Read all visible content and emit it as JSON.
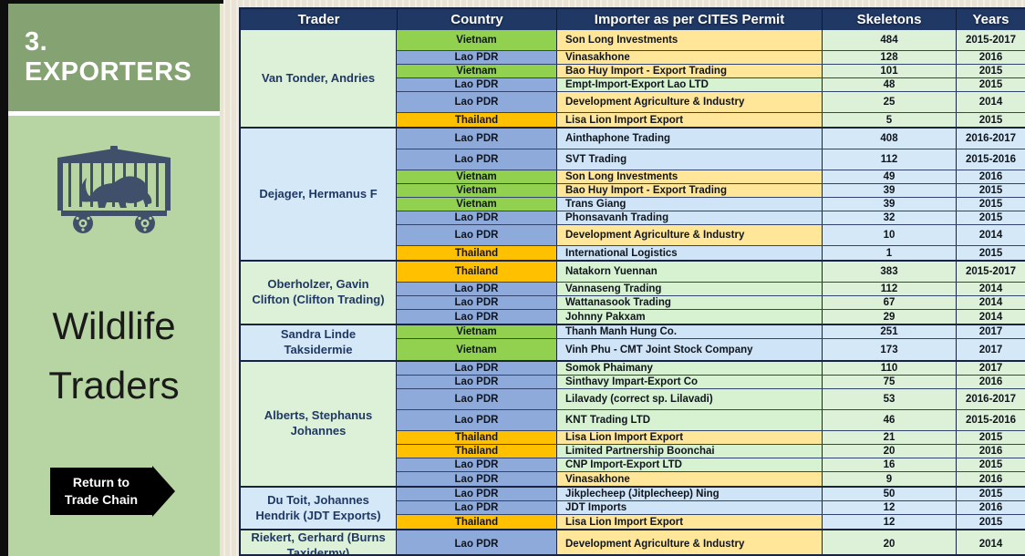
{
  "sidebar": {
    "section_label": "3. EXPORTERS",
    "title_line1": "Wildlife",
    "title_line2": "Traders",
    "return_button": {
      "line1": "Return to",
      "line2": "Trade Chain"
    },
    "icon": "lion-cage-icon"
  },
  "colors": {
    "header_bg": "#1F3864",
    "banner_green": "#85A372",
    "panel_green": "#B7D5A2",
    "vietnam_green": "#92D050",
    "lao_blue": "#8EAADB",
    "thailand_orange": "#FFC000",
    "cell_tan": "#FFE699",
    "cell_light_green": "#D6F2D0",
    "cell_light_blue": "#CFE5F7",
    "section_green": "#DDF0D8",
    "section_blue": "#D4E8F7"
  },
  "table": {
    "headers": [
      "Trader",
      "Country",
      "Importer as per CITES Permit",
      "Skeletons",
      "Years"
    ],
    "sections": [
      {
        "trader": "Van Tonder, Andries",
        "tone": "green",
        "rows": [
          {
            "country": "Vietnam",
            "country_color": "vietnam_green",
            "importer": "Son Long Investments",
            "importer_color": "cell_tan",
            "skeletons": "484",
            "years": "2015-2017",
            "size": "tall"
          },
          {
            "country": "Lao PDR",
            "country_color": "lao_blue",
            "importer": "Vinasakhone",
            "importer_color": "cell_tan",
            "skeletons": "128",
            "years": "2016",
            "size": "normal"
          },
          {
            "country": "Vietnam",
            "country_color": "vietnam_green",
            "importer": "Bao Huy Import - Export Trading",
            "importer_color": "cell_tan",
            "skeletons": "101",
            "years": "2015",
            "size": "normal"
          },
          {
            "country": "Lao PDR",
            "country_color": "lao_blue",
            "importer": "Empt-Import-Export Lao LTD",
            "importer_color": "cell_light_green",
            "skeletons": "48",
            "years": "2015",
            "size": "normal"
          },
          {
            "country": "Lao PDR",
            "country_color": "lao_blue",
            "importer": "Development Agriculture & Industry",
            "importer_color": "cell_tan",
            "skeletons": "25",
            "years": "2014",
            "size": "tall"
          },
          {
            "country": "Thailand",
            "country_color": "thailand_orange",
            "importer": "Lisa Lion Import Export",
            "importer_color": "cell_tan",
            "skeletons": "5",
            "years": "2015",
            "size": "normal"
          }
        ]
      },
      {
        "trader": "Dejager, Hermanus F",
        "tone": "blue",
        "rows": [
          {
            "country": "Lao PDR",
            "country_color": "lao_blue",
            "importer": "Ainthaphone Trading",
            "importer_color": "cell_light_blue",
            "skeletons": "408",
            "years": "2016-2017",
            "size": "tall"
          },
          {
            "country": "Lao PDR",
            "country_color": "lao_blue",
            "importer": "SVT Trading",
            "importer_color": "cell_light_blue",
            "skeletons": "112",
            "years": "2015-2016",
            "size": "tall"
          },
          {
            "country": "Vietnam",
            "country_color": "vietnam_green",
            "importer": "Son Long Investments",
            "importer_color": "cell_tan",
            "skeletons": "49",
            "years": "2016",
            "size": "normal"
          },
          {
            "country": "Vietnam",
            "country_color": "vietnam_green",
            "importer": "Bao Huy Import - Export Trading",
            "importer_color": "cell_tan",
            "skeletons": "39",
            "years": "2015",
            "size": "normal"
          },
          {
            "country": "Vietnam",
            "country_color": "vietnam_green",
            "importer": "Trans Giang",
            "importer_color": "cell_light_blue",
            "skeletons": "39",
            "years": "2015",
            "size": "normal"
          },
          {
            "country": "Lao PDR",
            "country_color": "lao_blue",
            "importer": "Phonsavanh Trading",
            "importer_color": "cell_light_blue",
            "skeletons": "32",
            "years": "2015",
            "size": "normal"
          },
          {
            "country": "Lao PDR",
            "country_color": "lao_blue",
            "importer": "Development Agriculture & Industry",
            "importer_color": "cell_tan",
            "skeletons": "10",
            "years": "2014",
            "size": "tall"
          },
          {
            "country": "Thailand",
            "country_color": "thailand_orange",
            "importer": "International Logistics",
            "importer_color": "cell_light_blue",
            "skeletons": "1",
            "years": "2015",
            "size": "normal"
          }
        ]
      },
      {
        "trader": "Oberholzer, Gavin Clifton (Clifton Trading)",
        "tone": "green",
        "rows": [
          {
            "country": "Thailand",
            "country_color": "thailand_orange",
            "importer": "Natakorn Yuennan",
            "importer_color": "cell_light_green",
            "skeletons": "383",
            "years": "2015-2017",
            "size": "tall"
          },
          {
            "country": "Lao PDR",
            "country_color": "lao_blue",
            "importer": "Vannaseng Trading",
            "importer_color": "cell_light_green",
            "skeletons": "112",
            "years": "2014",
            "size": "normal"
          },
          {
            "country": "Lao PDR",
            "country_color": "lao_blue",
            "importer": "Wattanasook Trading",
            "importer_color": "cell_light_green",
            "skeletons": "67",
            "years": "2014",
            "size": "normal"
          },
          {
            "country": "Lao PDR",
            "country_color": "lao_blue",
            "importer": "Johnny Pakxam",
            "importer_color": "cell_light_green",
            "skeletons": "29",
            "years": "2014",
            "size": "normal"
          }
        ]
      },
      {
        "trader": "Sandra Linde Taksidermie",
        "tone": "blue",
        "rows": [
          {
            "country": "Vietnam",
            "country_color": "vietnam_green",
            "importer": "Thanh Manh Hung Co.",
            "importer_color": "cell_light_blue",
            "skeletons": "251",
            "years": "2017",
            "size": "normal"
          },
          {
            "country": "Vietnam",
            "country_color": "vietnam_green",
            "importer": "Vinh Phu - CMT Joint Stock Company",
            "importer_color": "cell_light_blue",
            "skeletons": "173",
            "years": "2017",
            "size": "tall"
          }
        ]
      },
      {
        "trader": "Alberts, Stephanus Johannes",
        "tone": "green",
        "rows": [
          {
            "country": "Lao PDR",
            "country_color": "lao_blue",
            "importer": "Somok Phaimany",
            "importer_color": "cell_light_green",
            "skeletons": "110",
            "years": "2017",
            "size": "normal"
          },
          {
            "country": "Lao PDR",
            "country_color": "lao_blue",
            "importer": "Sinthavy Impart-Export Co",
            "importer_color": "cell_light_green",
            "skeletons": "75",
            "years": "2016",
            "size": "normal"
          },
          {
            "country": "Lao PDR",
            "country_color": "lao_blue",
            "importer": "Lilavady (correct sp. Lilavadi)",
            "importer_color": "cell_light_green",
            "skeletons": "53",
            "years": "2016-2017",
            "size": "tall"
          },
          {
            "country": "Lao PDR",
            "country_color": "lao_blue",
            "importer": "KNT Trading LTD",
            "importer_color": "cell_light_green",
            "skeletons": "46",
            "years": "2015-2016",
            "size": "tall"
          },
          {
            "country": "Thailand",
            "country_color": "thailand_orange",
            "importer": "Lisa Lion Import Export",
            "importer_color": "cell_tan",
            "skeletons": "21",
            "years": "2015",
            "size": "normal"
          },
          {
            "country": "Thailand",
            "country_color": "thailand_orange",
            "importer": "Limited Partnership Boonchai",
            "importer_color": "cell_light_green",
            "skeletons": "20",
            "years": "2016",
            "size": "normal"
          },
          {
            "country": "Lao PDR",
            "country_color": "lao_blue",
            "importer": "CNP Import-Export LTD",
            "importer_color": "cell_light_green",
            "skeletons": "16",
            "years": "2015",
            "size": "normal"
          },
          {
            "country": "Lao PDR",
            "country_color": "lao_blue",
            "importer": "Vinasakhone",
            "importer_color": "cell_tan",
            "skeletons": "9",
            "years": "2016",
            "size": "normal"
          }
        ]
      },
      {
        "trader": "Du Toit, Johannes Hendrik (JDT Exports)",
        "tone": "blue",
        "rows": [
          {
            "country": "Lao PDR",
            "country_color": "lao_blue",
            "importer": "Jikplecheep (Jitplecheep) Ning",
            "importer_color": "cell_light_blue",
            "skeletons": "50",
            "years": "2015",
            "size": "normal"
          },
          {
            "country": "Lao PDR",
            "country_color": "lao_blue",
            "importer": "JDT Imports",
            "importer_color": "cell_light_blue",
            "skeletons": "12",
            "years": "2016",
            "size": "normal"
          },
          {
            "country": "Thailand",
            "country_color": "thailand_orange",
            "importer": "Lisa Lion Import Export",
            "importer_color": "cell_tan",
            "skeletons": "12",
            "years": "2015",
            "size": "normal"
          }
        ]
      },
      {
        "trader": "Riekert, Gerhard (Burns Taxidermy)",
        "tone": "green",
        "rows": [
          {
            "country": "Lao PDR",
            "country_color": "lao_blue",
            "importer": "Development Agriculture & Industry",
            "importer_color": "cell_tan",
            "skeletons": "20",
            "years": "2014",
            "size": "xtall"
          }
        ]
      }
    ]
  }
}
